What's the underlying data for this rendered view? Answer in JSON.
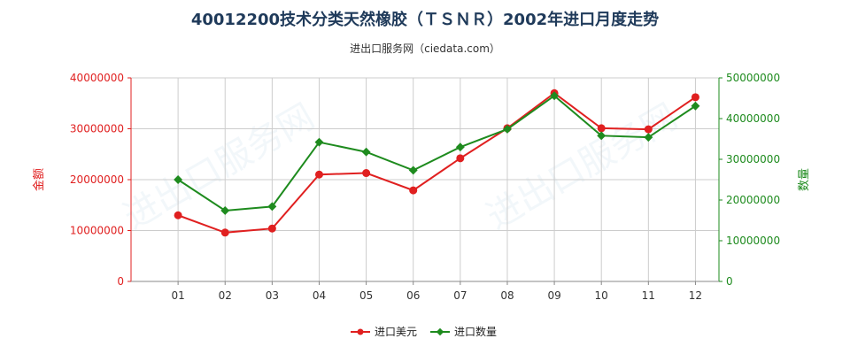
{
  "chart_data": {
    "type": "line",
    "title": "40012200技术分类天然橡胶（ＴＳＮＲ）2002年进口月度走势",
    "subtitle": "进出口服务网（ciedata.com）",
    "categories": [
      "01",
      "02",
      "03",
      "04",
      "05",
      "06",
      "07",
      "08",
      "09",
      "10",
      "11",
      "12"
    ],
    "left_axis": {
      "label": "金额",
      "ylim": [
        0,
        40000000
      ],
      "ticks": [
        "0",
        "10000000",
        "20000000",
        "30000000",
        "40000000"
      ],
      "color": "#e02020"
    },
    "right_axis": {
      "label": "数量",
      "ylim": [
        0,
        50000000
      ],
      "ticks": [
        "0",
        "10000000",
        "20000000",
        "30000000",
        "40000000",
        "50000000"
      ],
      "color": "#1e8b1e"
    },
    "series": [
      {
        "name": "进口美元",
        "axis": "left",
        "color": "#e02020",
        "values": [
          13000000,
          9600000,
          10400000,
          21000000,
          21300000,
          17900000,
          24200000,
          30100000,
          37000000,
          30100000,
          29900000,
          36200000
        ]
      },
      {
        "name": "进口数量",
        "axis": "right",
        "color": "#1e8b1e",
        "values": [
          25000000,
          17400000,
          18400000,
          34200000,
          31800000,
          27300000,
          33000000,
          37400000,
          45600000,
          35800000,
          35400000,
          43100000
        ]
      }
    ],
    "grid": true,
    "legend": "bottom"
  }
}
